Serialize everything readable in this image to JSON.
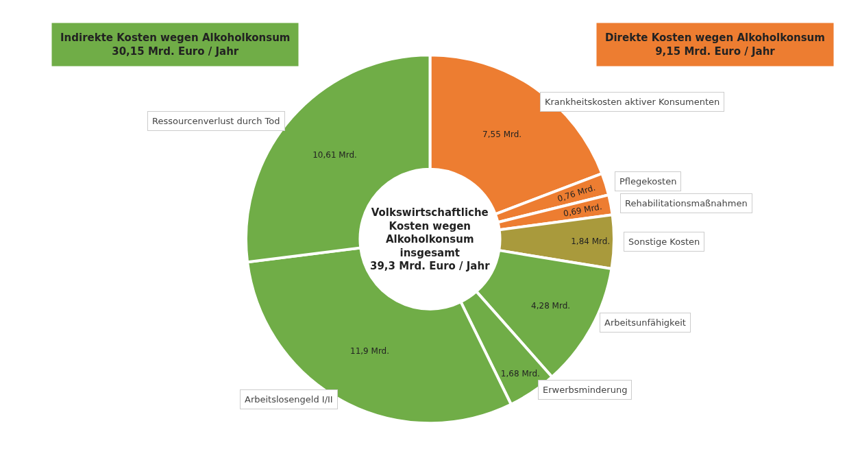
{
  "chart_data": {
    "type": "donut",
    "categories": [
      "Krankheitskosten aktiver Konsumenten",
      "Pflegekosten",
      "Rehabilitationsmaßnahmen",
      "Sonstige Kosten",
      "Arbeitsunfähigkeit",
      "Erwerbsminderung",
      "Arbeitslosengeld I/II",
      "Ressourcenverlust durch Tod"
    ],
    "values": [
      7.55,
      0.76,
      0.69,
      1.84,
      4.28,
      1.68,
      11.9,
      10.61
    ],
    "value_labels": [
      "7,55 Mrd.",
      "0,76 Mrd.",
      "0,69 Mrd.",
      "1,84 Mrd.",
      "4,28 Mrd.",
      "1,68 Mrd.",
      "11,9 Mrd.",
      "10,61 Mrd."
    ],
    "colors": [
      "#ed7d31",
      "#ed7d31",
      "#ed7d31",
      "#a99a3c",
      "#70ad47",
      "#70ad47",
      "#70ad47",
      "#70ad47"
    ],
    "annotations": [
      "Indirekte Kosten wegen Alkoholkonsum\n30,15 Mrd. Euro / Jahr",
      "Direkte Kosten wegen Alkoholkonsum\n9,15 Mrd. Euro / Jahr",
      "Volkswirtschaftliche\nKosten wegen\nAlkoholkonsum\ninsgesamt\n39,3 Mrd. Euro / Jahr"
    ],
    "legend": false
  }
}
